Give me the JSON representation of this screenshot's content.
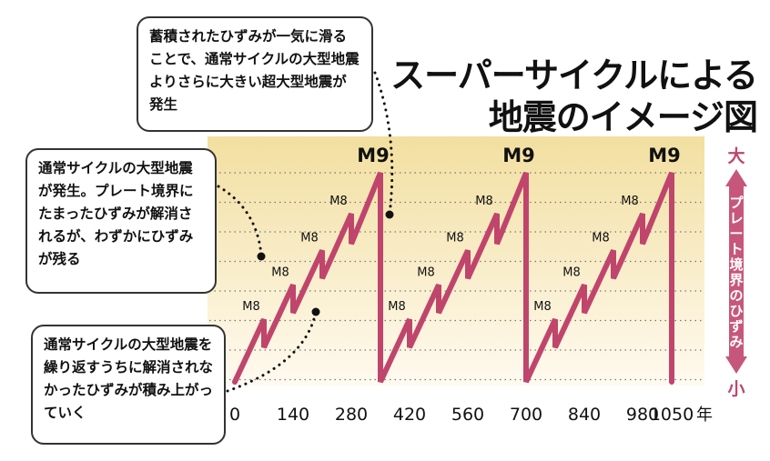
{
  "title": [
    "スーパーサイクルによる",
    "地震のイメージ図"
  ],
  "callouts": {
    "supercycle": "蓄積されたひずみが一気に滑ることで、通常サイクルの大型地震よりさらに大きい超大型地震が発生",
    "normal_quake": "通常サイクルの大型地震が発生。プレート境界にたまったひずみが解消されるが、わずかにひずみが残る",
    "accumulation": "通常サイクルの大型地震を繰り返すうちに解消されなかったひずみが積み上がっていく"
  },
  "legend": {
    "high": "大",
    "low": "小",
    "axis_label": "プレート境界のひずみ"
  },
  "colors": {
    "line": "#c0456c",
    "band_top": "#f2dfa0",
    "band_bottom": "#fffaf0",
    "arrow": "#c7577a",
    "grid": "#777777"
  },
  "chart_data": {
    "type": "line",
    "xlabel": "年",
    "ylabel": "プレート境界のひずみ",
    "x_ticks": [
      0,
      140,
      280,
      420,
      560,
      700,
      840,
      980,
      1050
    ],
    "x_unit": "年",
    "y_range_labels": {
      "max": "大",
      "min": "小"
    },
    "series": [
      {
        "points": [
          [
            0,
            0
          ],
          [
            70,
            2.9
          ],
          [
            70,
            1.6
          ],
          [
            140,
            4.5
          ],
          [
            140,
            3.2
          ],
          [
            210,
            6.1
          ],
          [
            210,
            4.8
          ],
          [
            280,
            7.8
          ],
          [
            280,
            6.4
          ],
          [
            350,
            9.7
          ],
          [
            350,
            0
          ],
          [
            420,
            2.9
          ],
          [
            420,
            1.6
          ],
          [
            490,
            4.5
          ],
          [
            490,
            3.2
          ],
          [
            560,
            6.1
          ],
          [
            560,
            4.8
          ],
          [
            630,
            7.8
          ],
          [
            630,
            6.4
          ],
          [
            700,
            9.7
          ],
          [
            700,
            0
          ],
          [
            770,
            2.9
          ],
          [
            770,
            1.6
          ],
          [
            840,
            4.5
          ],
          [
            840,
            3.2
          ],
          [
            910,
            6.1
          ],
          [
            910,
            4.8
          ],
          [
            980,
            7.8
          ],
          [
            980,
            6.4
          ],
          [
            1050,
            9.7
          ],
          [
            1050,
            0
          ]
        ]
      }
    ],
    "annotations": [
      {
        "label": "M8",
        "x": 70,
        "y": 2.9
      },
      {
        "label": "M8",
        "x": 140,
        "y": 4.5
      },
      {
        "label": "M8",
        "x": 210,
        "y": 6.1
      },
      {
        "label": "M8",
        "x": 280,
        "y": 7.8
      },
      {
        "label": "M9",
        "x": 350,
        "y": 9.7
      },
      {
        "label": "M8",
        "x": 420,
        "y": 2.9
      },
      {
        "label": "M8",
        "x": 490,
        "y": 4.5
      },
      {
        "label": "M8",
        "x": 560,
        "y": 6.1
      },
      {
        "label": "M8",
        "x": 630,
        "y": 7.8
      },
      {
        "label": "M9",
        "x": 700,
        "y": 9.7
      },
      {
        "label": "M8",
        "x": 770,
        "y": 2.9
      },
      {
        "label": "M8",
        "x": 840,
        "y": 4.5
      },
      {
        "label": "M8",
        "x": 910,
        "y": 6.1
      },
      {
        "label": "M8",
        "x": 980,
        "y": 7.8
      },
      {
        "label": "M9",
        "x": 1050,
        "y": 9.7
      }
    ]
  }
}
